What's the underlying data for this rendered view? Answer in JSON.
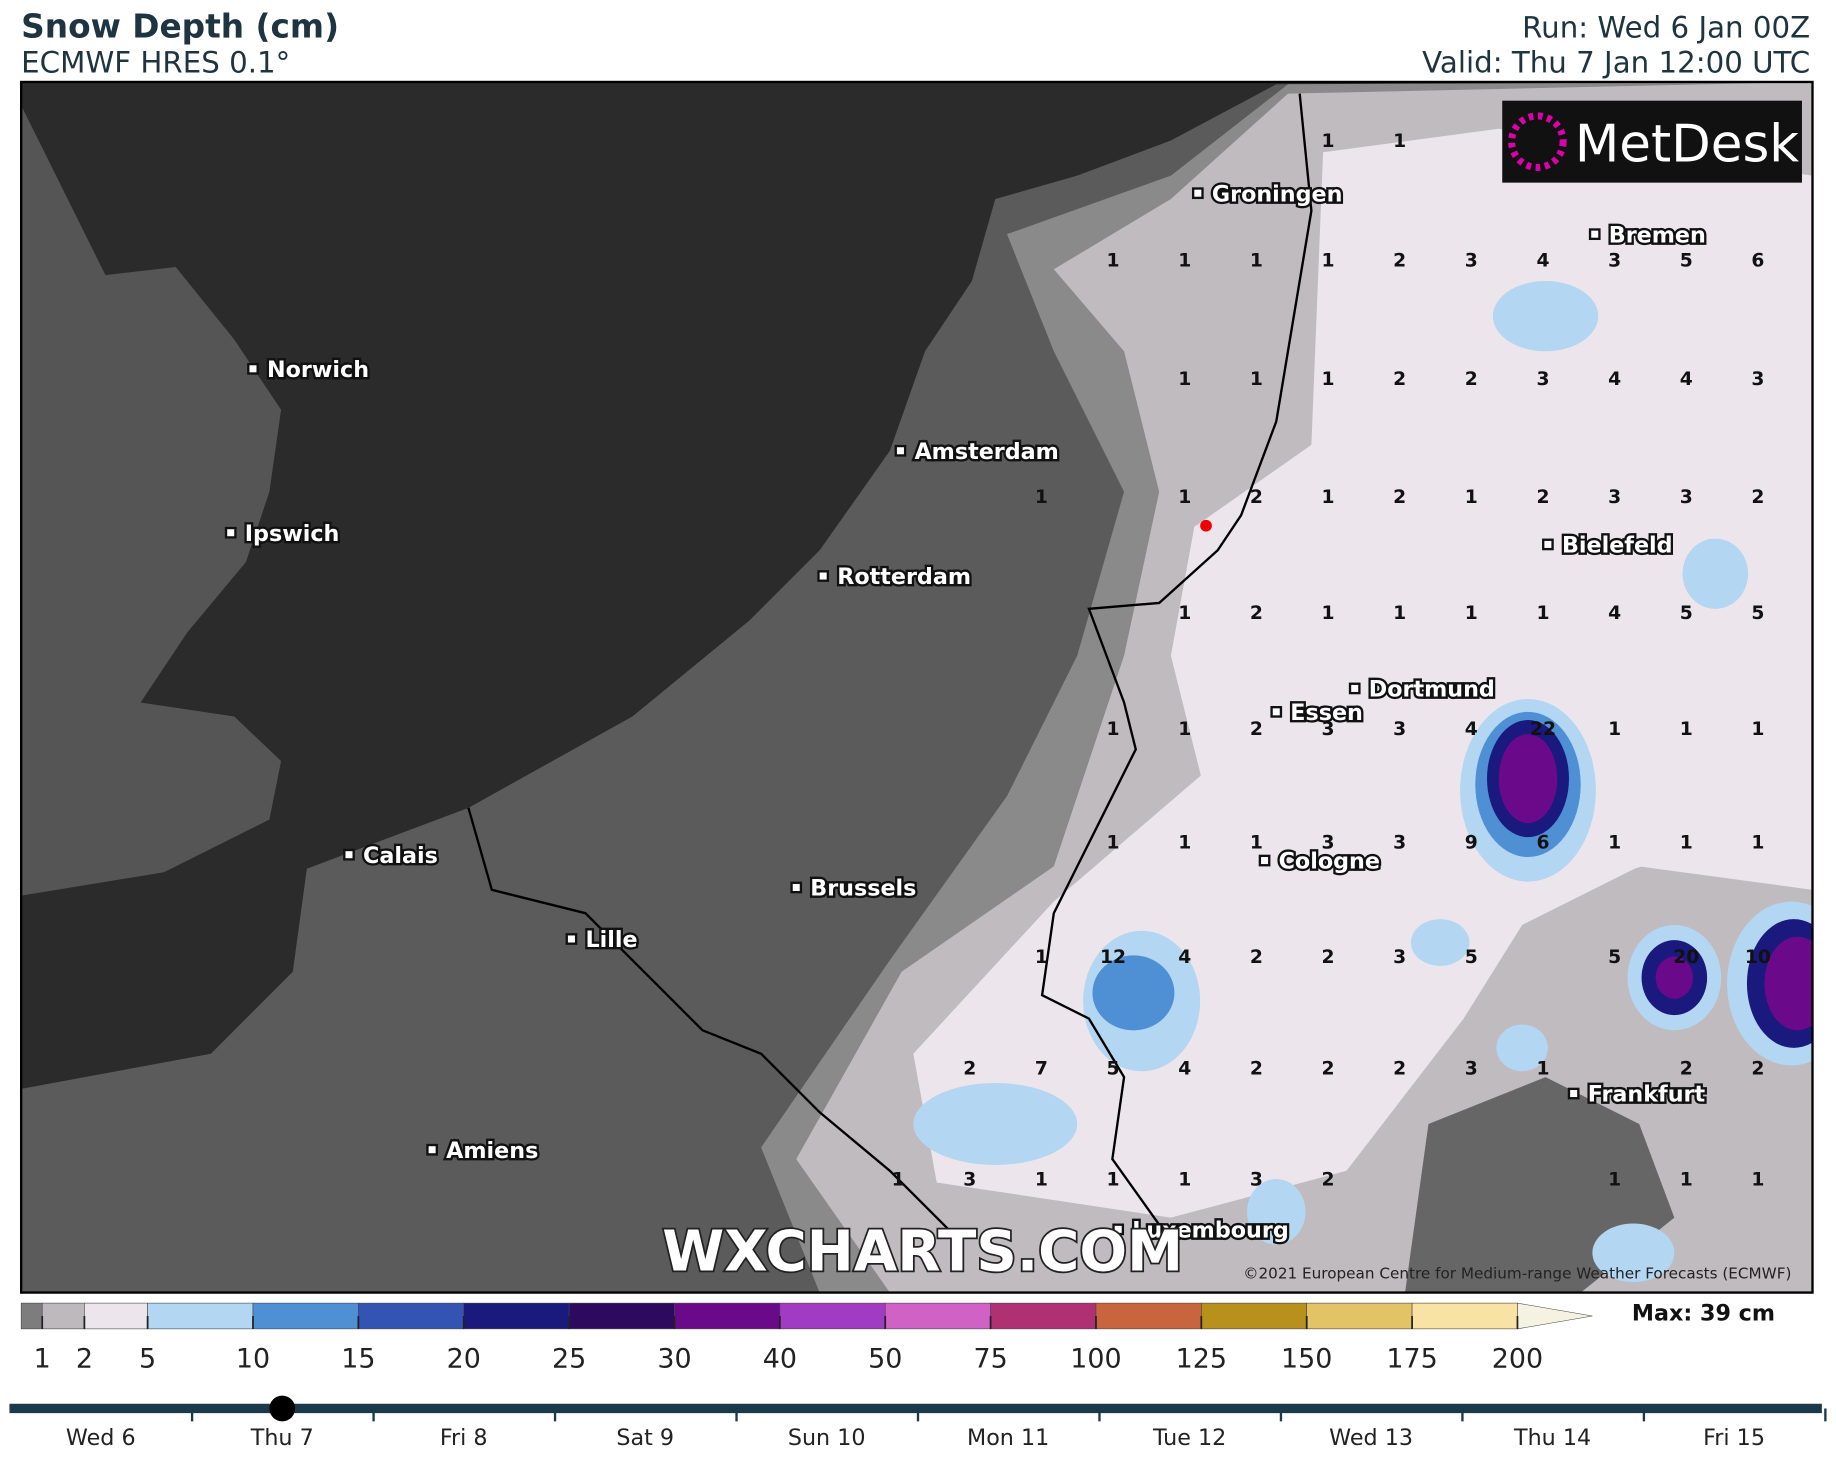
{
  "header": {
    "title": "Snow Depth (cm)",
    "subtitle": "ECMWF HRES 0.1°",
    "run": "Run: Wed 6 Jan 00Z",
    "valid": "Valid: Thu 7 Jan 12:00 UTC"
  },
  "logo": "MetDesk",
  "cities": [
    "Groningen",
    "Bremen",
    "Norwich",
    "Amsterdam",
    "Ipswich",
    "Bielefeld",
    "Rotterdam",
    "Dortmund",
    "Essen",
    "Calais",
    "Cologne",
    "Brussels",
    "Lille",
    "Frankfurt",
    "Amiens",
    "Luxembourg"
  ],
  "grid": [
    [
      null,
      null,
      null,
      null,
      null,
      null,
      1,
      1,
      null,
      null,
      null,
      null,
      null
    ],
    [
      null,
      null,
      null,
      1,
      1,
      1,
      1,
      2,
      3,
      4,
      3,
      5,
      6
    ],
    [
      null,
      null,
      null,
      null,
      1,
      1,
      1,
      2,
      2,
      3,
      4,
      4,
      3
    ],
    [
      null,
      null,
      1,
      null,
      1,
      2,
      1,
      2,
      1,
      2,
      3,
      3,
      2
    ],
    [
      null,
      null,
      null,
      null,
      1,
      2,
      1,
      1,
      1,
      1,
      4,
      5,
      5
    ],
    [
      null,
      null,
      null,
      1,
      1,
      2,
      3,
      3,
      4,
      22,
      1,
      1,
      1
    ],
    [
      null,
      null,
      null,
      1,
      1,
      1,
      3,
      3,
      9,
      6,
      1,
      1,
      1
    ],
    [
      null,
      null,
      1,
      12,
      4,
      2,
      2,
      3,
      5,
      null,
      5,
      20,
      10
    ],
    [
      null,
      2,
      7,
      5,
      4,
      2,
      2,
      2,
      3,
      1,
      null,
      2,
      2
    ],
    [
      1,
      3,
      1,
      1,
      1,
      3,
      2,
      null,
      null,
      null,
      1,
      1,
      1
    ]
  ],
  "watermark": "WXCHARTS.COM",
  "copyright": "©2021 European Centre for Medium-range Weather Forecasts (ECMWF)",
  "legend": {
    "ticks": [
      1,
      2,
      5,
      10,
      15,
      20,
      25,
      30,
      40,
      50,
      75,
      100,
      125,
      150,
      175,
      200
    ],
    "colors": [
      "#7d7d7d",
      "#bdb9bd",
      "#ece6ec",
      "#b3d6f2",
      "#4f8fd3",
      "#3454b4",
      "#19197e",
      "#2e0a5e",
      "#6a0a8a",
      "#a23bc4",
      "#d062c6",
      "#b03074",
      "#c8643e",
      "#b8901c",
      "#e2c466",
      "#f8e2a4",
      "#f6f2e2"
    ],
    "max": "Max: 39 cm"
  },
  "timeline": {
    "days": [
      "Wed 6",
      "Thu 7",
      "Fri 8",
      "Sat 9",
      "Sun 10",
      "Mon 11",
      "Tue 12",
      "Wed 13",
      "Thu 14",
      "Fri 15"
    ],
    "current": 1
  }
}
